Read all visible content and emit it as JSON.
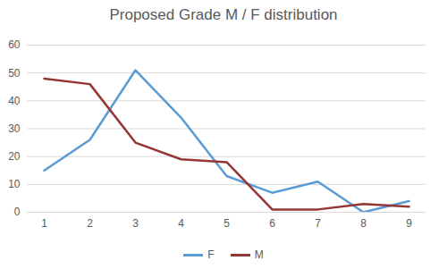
{
  "chart_data": {
    "type": "line",
    "title": "Proposed Grade M / F distribution",
    "categories": [
      "1",
      "2",
      "3",
      "4",
      "5",
      "6",
      "7",
      "8",
      "9"
    ],
    "series": [
      {
        "name": "F",
        "color": "#5b9bd5",
        "values": [
          15,
          26,
          51,
          34,
          13,
          7,
          11,
          0,
          4
        ]
      },
      {
        "name": "M",
        "color": "#943634",
        "values": [
          48,
          46,
          25,
          19,
          18,
          1,
          1,
          3,
          2
        ]
      }
    ],
    "ylim": [
      0,
      60
    ],
    "yticks": [
      0,
      10,
      20,
      30,
      40,
      50,
      60
    ],
    "grid": true,
    "legend": "bottom"
  }
}
